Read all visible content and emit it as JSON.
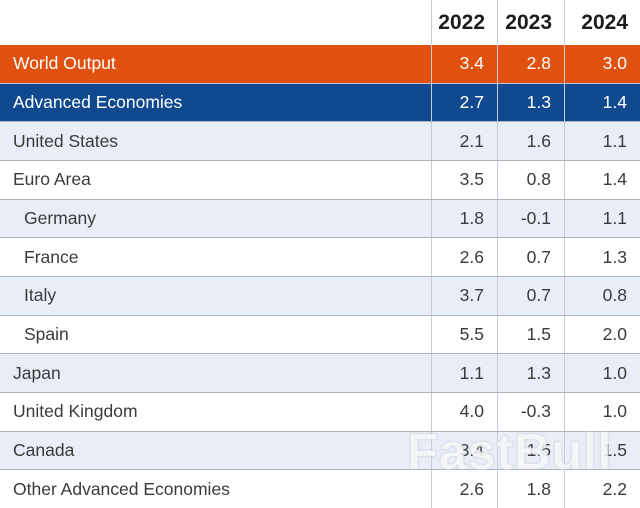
{
  "watermark": "FastBull",
  "colors": {
    "world_row_bg": "#e0500f",
    "advanced_row_bg": "#11498f",
    "stripe_row_bg": "#e9edf7",
    "grid_line": "#c7ccd6",
    "row_separator": "#adb4bf",
    "header_text": "#1c1c1a",
    "body_text": "#3b3b3a"
  },
  "chart_data": {
    "type": "table",
    "title": "",
    "columns": [
      "",
      "2022",
      "2023",
      "2024"
    ],
    "rows": [
      {
        "label": "World Output",
        "values": [
          "3.4",
          "2.8",
          "3.0"
        ]
      },
      {
        "label": "Advanced Economies",
        "values": [
          "2.7",
          "1.3",
          "1.4"
        ]
      },
      {
        "label": "United States",
        "values": [
          "2.1",
          "1.6",
          "1.1"
        ]
      },
      {
        "label": "Euro Area",
        "values": [
          "3.5",
          "0.8",
          "1.4"
        ]
      },
      {
        "label": "Germany",
        "values": [
          "1.8",
          "-0.1",
          "1.1"
        ]
      },
      {
        "label": "France",
        "values": [
          "2.6",
          "0.7",
          "1.3"
        ]
      },
      {
        "label": "Italy",
        "values": [
          "3.7",
          "0.7",
          "0.8"
        ]
      },
      {
        "label": "Spain",
        "values": [
          "5.5",
          "1.5",
          "2.0"
        ]
      },
      {
        "label": "Japan",
        "values": [
          "1.1",
          "1.3",
          "1.0"
        ]
      },
      {
        "label": "United Kingdom",
        "values": [
          "4.0",
          "-0.3",
          "1.0"
        ]
      },
      {
        "label": "Canada",
        "values": [
          "3.4",
          "1.5",
          "1.5"
        ]
      },
      {
        "label": "Other Advanced Economies",
        "values": [
          "2.6",
          "1.8",
          "2.2"
        ]
      }
    ]
  },
  "table": {
    "years": [
      "2022",
      "2023",
      "2024"
    ],
    "rows": [
      {
        "label": "World Output",
        "values": [
          "3.4",
          "2.8",
          "3.0"
        ]
      },
      {
        "label": "Advanced Economies",
        "values": [
          "2.7",
          "1.3",
          "1.4"
        ]
      },
      {
        "label": "United States",
        "values": [
          "2.1",
          "1.6",
          "1.1"
        ]
      },
      {
        "label": "Euro Area",
        "values": [
          "3.5",
          "0.8",
          "1.4"
        ]
      },
      {
        "label": "Germany",
        "values": [
          "1.8",
          "-0.1",
          "1.1"
        ]
      },
      {
        "label": "France",
        "values": [
          "2.6",
          "0.7",
          "1.3"
        ]
      },
      {
        "label": "Italy",
        "values": [
          "3.7",
          "0.7",
          "0.8"
        ]
      },
      {
        "label": "Spain",
        "values": [
          "5.5",
          "1.5",
          "2.0"
        ]
      },
      {
        "label": "Japan",
        "values": [
          "1.1",
          "1.3",
          "1.0"
        ]
      },
      {
        "label": "United Kingdom",
        "values": [
          "4.0",
          "-0.3",
          "1.0"
        ]
      },
      {
        "label": "Canada",
        "values": [
          "3.4",
          "1.5",
          "1.5"
        ]
      },
      {
        "label": "Other Advanced Economies",
        "values": [
          "2.6",
          "1.8",
          "2.2"
        ]
      }
    ]
  }
}
